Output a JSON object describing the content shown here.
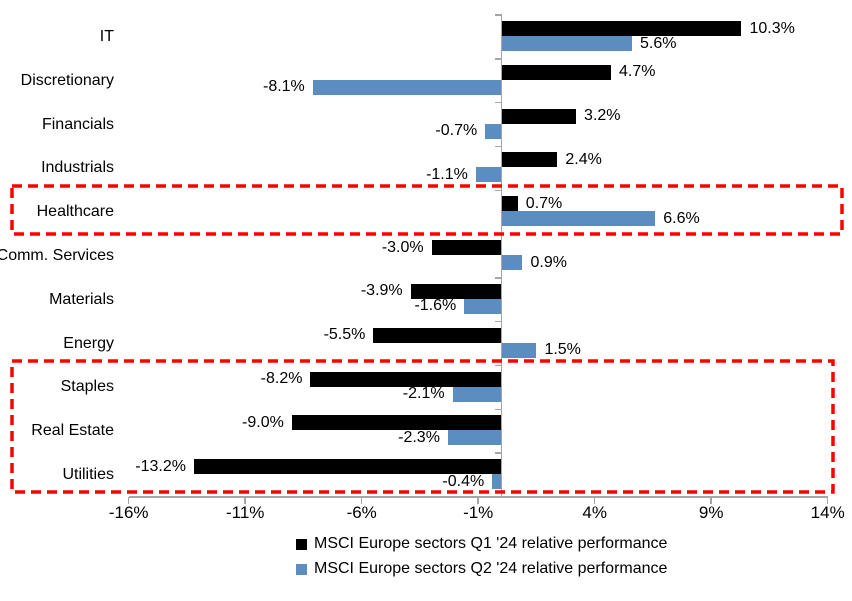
{
  "chart_data": {
    "type": "bar",
    "orientation": "horizontal",
    "title": "",
    "categories": [
      "IT",
      "Discretionary",
      "Financials",
      "Industrials",
      "Healthcare",
      "Comm. Services",
      "Materials",
      "Energy",
      "Staples",
      "Real Estate",
      "Utilities"
    ],
    "series": [
      {
        "name": "MSCI Europe sectors Q1 '24 relative performance",
        "color": "#000000",
        "values": [
          10.3,
          4.7,
          3.2,
          2.4,
          0.7,
          -3.0,
          -3.9,
          -5.5,
          -8.2,
          -9.0,
          -13.2
        ]
      },
      {
        "name": "MSCI Europe sectors Q2 '24 relative performance",
        "color": "#5B8DC1",
        "values": [
          5.6,
          -8.1,
          -0.7,
          -1.1,
          6.6,
          0.9,
          -1.6,
          1.5,
          -2.1,
          -2.3,
          -0.4
        ]
      }
    ],
    "data_label_format": "0.0%",
    "x_axis": {
      "tick_labels": [
        "-16%",
        "-11%",
        "-6%",
        "-1%",
        "4%",
        "9%",
        "14%"
      ],
      "tick_values": [
        -16,
        -11,
        -6,
        -1,
        4,
        9,
        14
      ],
      "min": -16,
      "max": 14
    },
    "grid": false,
    "legend_position": "bottom",
    "axis_color": "#A6A6A6",
    "highlight_boxes": [
      {
        "sectors": [
          "Healthcare"
        ],
        "color": "#FF0000",
        "style": "dashed"
      },
      {
        "sectors": [
          "Staples",
          "Real Estate",
          "Utilities"
        ],
        "color": "#FF0000",
        "style": "dashed"
      }
    ]
  }
}
